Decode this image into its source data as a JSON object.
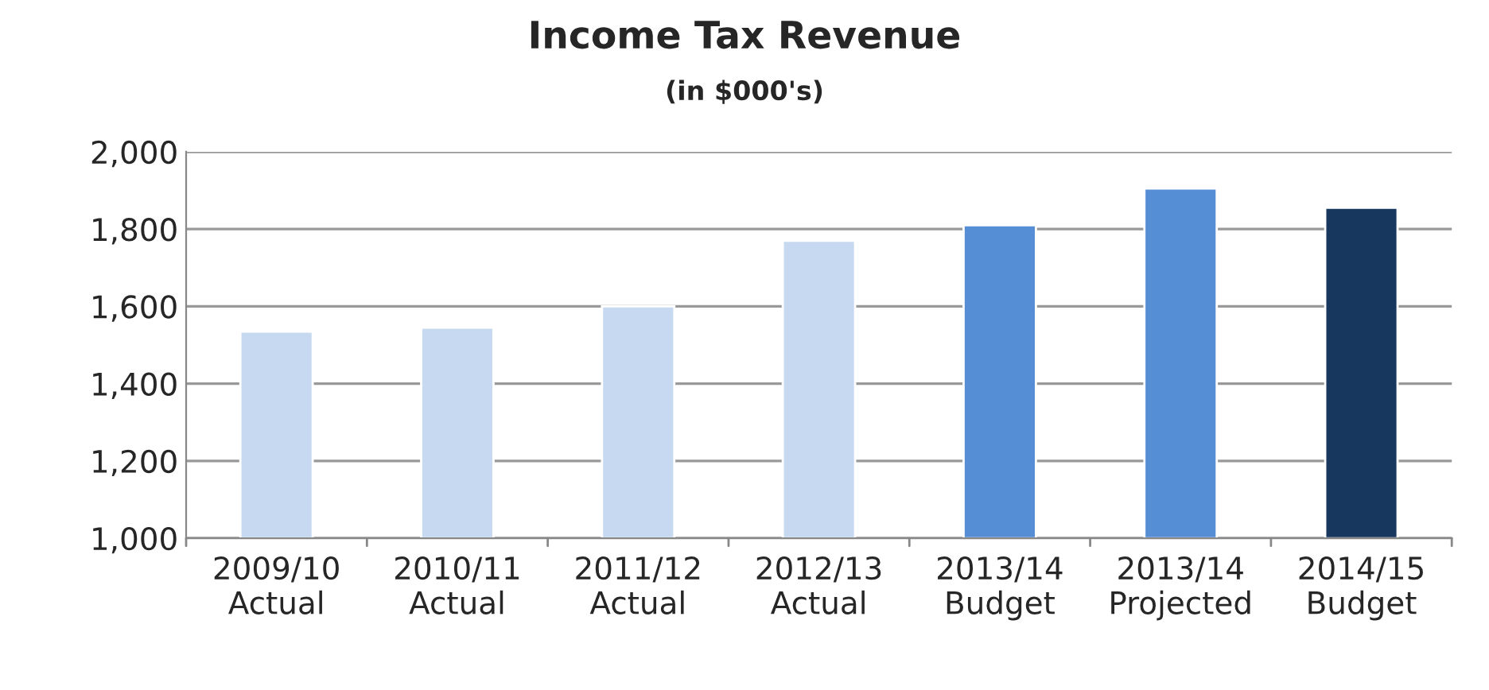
{
  "chart_data": {
    "type": "bar",
    "title": "Income Tax Revenue",
    "subtitle": "(in $000's)",
    "categories": [
      "2009/10\nActual",
      "2010/11\nActual",
      "2011/12\nActual",
      "2012/13\nActual",
      "2013/14\nBudget",
      "2013/14\nProjected",
      "2014/15\nBudget"
    ],
    "values": [
      1535,
      1545,
      1600,
      1770,
      1810,
      1905,
      1855
    ],
    "colors": [
      "#c6d9f0",
      "#c6d9f0",
      "#c6d9f0",
      "#c6d9f0",
      "#558ed5",
      "#558ed5",
      "#17375e"
    ],
    "ylim": [
      1000,
      2000
    ],
    "yticks": [
      {
        "value": 1000,
        "label": "1,000"
      },
      {
        "value": 1200,
        "label": "1,200"
      },
      {
        "value": 1400,
        "label": "1,400"
      },
      {
        "value": 1600,
        "label": "1,600"
      },
      {
        "value": 1800,
        "label": "1,800"
      },
      {
        "value": 2000,
        "label": "2,000"
      }
    ],
    "grid": "y",
    "legend": false
  }
}
